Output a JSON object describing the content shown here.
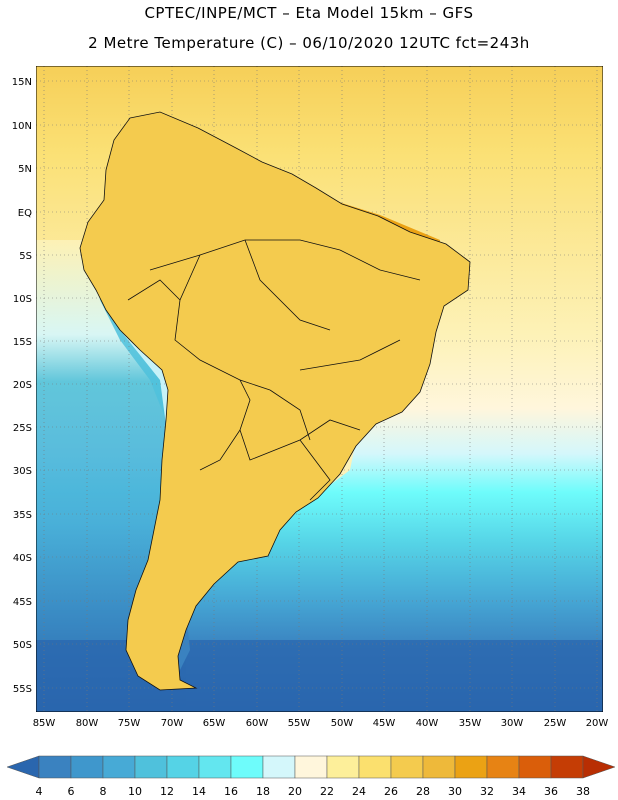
{
  "header": {
    "line1": "CPTEC/INPE/MCT –   Eta Model 15km – GFS",
    "line2": "2 Metre Temperature (C) – 06/10/2020 12UTC fct=243h"
  },
  "map": {
    "lat_labels": [
      "15N",
      "10N",
      "5N",
      "EQ",
      "5S",
      "10S",
      "15S",
      "20S",
      "25S",
      "30S",
      "35S",
      "40S",
      "45S",
      "50S",
      "55S"
    ],
    "lon_labels": [
      "85W",
      "80W",
      "75W",
      "70W",
      "65W",
      "60W",
      "55W",
      "50W",
      "45W",
      "40W",
      "35W",
      "30W",
      "25W",
      "20W"
    ]
  },
  "colorbar": {
    "labels": [
      "4",
      "6",
      "8",
      "10",
      "12",
      "14",
      "16",
      "18",
      "20",
      "22",
      "24",
      "26",
      "28",
      "30",
      "32",
      "34",
      "36",
      "38"
    ],
    "colors": [
      "#2a66ae",
      "#3a82c0",
      "#3f97cc",
      "#47aad6",
      "#4fc1dc",
      "#55d3e6",
      "#63e6ef",
      "#6efcfb",
      "#d4f7fb",
      "#fff6dc",
      "#fdef9a",
      "#fbe06e",
      "#f4cb4e",
      "#eeb93a",
      "#eba214",
      "#e78314",
      "#da5e0a",
      "#c53d05",
      "#b82e03"
    ]
  }
}
